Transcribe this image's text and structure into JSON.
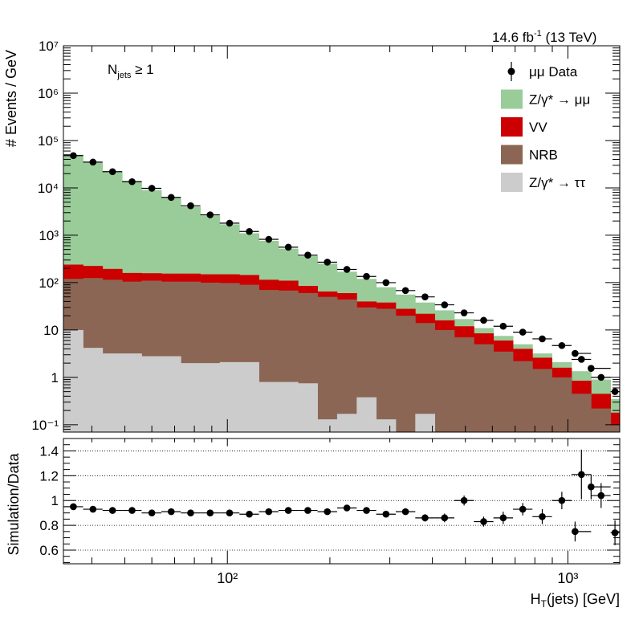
{
  "header": {
    "lumi_label": "14.6 fb",
    "lumi_exp": "-1",
    "energy": " (13 TeV)"
  },
  "annotation": {
    "main": "N",
    "sub": "jets",
    "rest": " ≥ 1"
  },
  "chart_data": [
    {
      "type": "area",
      "description_free": true,
      "ylabel": "# Events / GeV",
      "xlabel": "H",
      "xlabel_sub": "T",
      "xlabel_rest": "(jets) [GeV]",
      "xscale": "log",
      "yscale": "log",
      "xlim": [
        33,
        1420
      ],
      "ylim": [
        0.07,
        10000000
      ],
      "y_ticks": [
        "10⁻¹",
        "1",
        "10",
        "10²",
        "10³",
        "10⁴",
        "10⁵",
        "10⁶",
        "10⁷"
      ],
      "x_ticks": [
        "10²",
        "10³"
      ],
      "legend_position": "top-right",
      "bin_edges": [
        33,
        37.7,
        43,
        49.1,
        56,
        64,
        73,
        83.3,
        95,
        108.5,
        123.8,
        141.3,
        161.3,
        184,
        210,
        239.8,
        273.6,
        312.2,
        356.3,
        406.6,
        464,
        529.7,
        604.5,
        690,
        787,
        898,
        1025,
        1170,
        1335,
        1420
      ],
      "series": [
        {
          "name": "Z/γ* → ττ",
          "color": "#cccccc",
          "values": [
            10,
            4.2,
            3.2,
            3.2,
            2.8,
            2.8,
            2.0,
            2.0,
            2.1,
            2.1,
            0.8,
            0.8,
            0.75,
            0.13,
            0.17,
            0.38,
            0.13,
            0.07,
            0.17,
            0.07,
            0.04,
            0.04,
            0.04,
            0.04,
            0.04,
            0.04,
            0.04,
            0.04,
            0.04
          ]
        },
        {
          "name": "NRB",
          "color": "#8b6655",
          "values": [
            120,
            125,
            115,
            105,
            110,
            105,
            105,
            100,
            98,
            90,
            70,
            68,
            60,
            50,
            44,
            30,
            28,
            20,
            14,
            10,
            7,
            5,
            3.5,
            2.2,
            1.5,
            1.0,
            0.45,
            0.22,
            0.1
          ]
        },
        {
          "name": "VV",
          "color": "#cc0000",
          "values": [
            240,
            225,
            195,
            160,
            158,
            155,
            155,
            150,
            150,
            145,
            115,
            110,
            85,
            65,
            60,
            40,
            38,
            28,
            22,
            16,
            12,
            8.5,
            6,
            4.0,
            2.6,
            1.6,
            0.85,
            0.45,
            0.18
          ]
        },
        {
          "name": "Z/γ* → μμ",
          "color": "#99cc99",
          "values": [
            50000,
            34000,
            22000,
            14000,
            9000,
            6200,
            4000,
            2600,
            1700,
            1100,
            760,
            520,
            360,
            250,
            170,
            120,
            80,
            56,
            38,
            26,
            17,
            11,
            7.5,
            5,
            3.2,
            2.1,
            1.35,
            0.9,
            0.35
          ]
        }
      ],
      "data_points": {
        "name": "μμ Data",
        "x": [
          35.3,
          40.3,
          46,
          52.5,
          60,
          68.4,
          78,
          89,
          101.5,
          116,
          132.3,
          151,
          172.3,
          196.6,
          224.4,
          256.2,
          292.3,
          333.5,
          380.6,
          434.4,
          495.7,
          565.8,
          645.8,
          737,
          841,
          960,
          1050,
          1096,
          1170,
          1252,
          1375
        ],
        "y": [
          48000,
          35000,
          22000,
          13500,
          9800,
          6300,
          4200,
          2700,
          1800,
          1200,
          820,
          560,
          380,
          270,
          190,
          135,
          100,
          68,
          50,
          34,
          23,
          16,
          12,
          9,
          6.5,
          4.7,
          3.2,
          2.4,
          1.55,
          1.0,
          0.5
        ]
      },
      "ratio": {
        "ylabel": "Simulation/Data",
        "ylim": [
          0.49,
          1.5
        ],
        "y_ticks": [
          "0.6",
          "0.8",
          "1",
          "1.2",
          "1.4"
        ],
        "x": [
          35.3,
          40.3,
          46,
          52.5,
          60,
          68.4,
          78,
          89,
          101.5,
          116,
          132.3,
          151,
          172.3,
          196.6,
          224.4,
          256.2,
          292.3,
          333.5,
          380.6,
          434.4,
          495.7,
          565.8,
          645.8,
          737,
          841,
          960,
          1050,
          1096,
          1170,
          1252,
          1375
        ],
        "y": [
          0.95,
          0.93,
          0.92,
          0.92,
          0.9,
          0.91,
          0.9,
          0.9,
          0.9,
          0.89,
          0.91,
          0.92,
          0.92,
          0.91,
          0.94,
          0.92,
          0.89,
          0.91,
          0.86,
          0.86,
          1.0,
          0.83,
          0.86,
          0.93,
          0.87,
          1.0,
          0.75,
          1.21,
          1.11,
          1.04,
          0.74
        ],
        "err": [
          0.01,
          0.01,
          0.01,
          0.01,
          0.01,
          0.01,
          0.01,
          0.01,
          0.01,
          0.01,
          0.01,
          0.01,
          0.015,
          0.015,
          0.02,
          0.02,
          0.02,
          0.025,
          0.03,
          0.035,
          0.04,
          0.04,
          0.05,
          0.05,
          0.06,
          0.07,
          0.08,
          0.2,
          0.1,
          0.1,
          0.1
        ]
      }
    }
  ]
}
